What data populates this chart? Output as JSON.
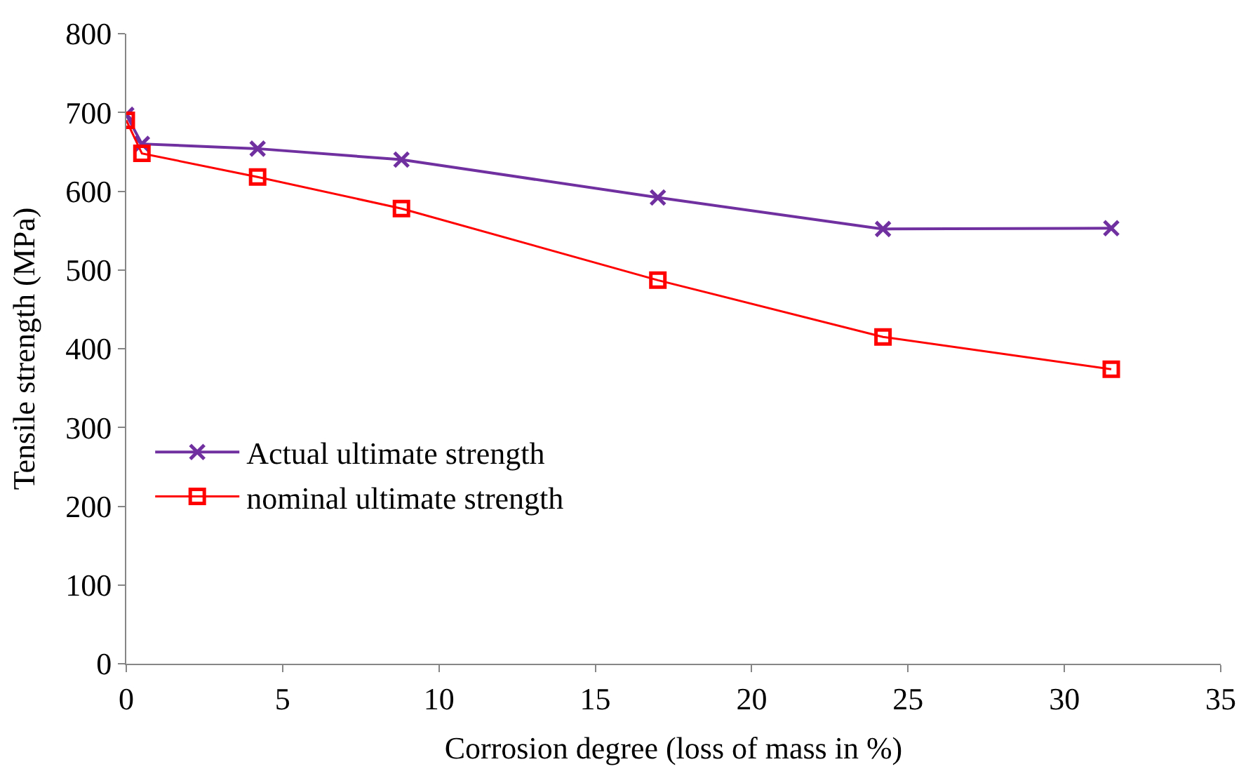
{
  "chart_data": {
    "type": "line",
    "xlabel": "Corrosion degree (loss of mass in %)",
    "ylabel": "Tensile strength (MPa)",
    "x": [
      0,
      0.5,
      4.2,
      8.8,
      17,
      24.2,
      31.5
    ],
    "series": [
      {
        "name": "Actual ultimate strength",
        "color": "#7030a0",
        "marker": "cross",
        "values": [
          697,
          660,
          654,
          640,
          592,
          552,
          553
        ]
      },
      {
        "name": "nominal ultimate strength",
        "color": "#ff0000",
        "marker": "square",
        "values": [
          690,
          648,
          618,
          578,
          487,
          415,
          374
        ]
      }
    ],
    "xlim": [
      0,
      35
    ],
    "xticks": [
      0,
      5,
      10,
      15,
      20,
      25,
      30,
      35
    ],
    "ylim": [
      0,
      800
    ],
    "yticks": [
      0,
      100,
      200,
      300,
      400,
      500,
      600,
      700,
      800
    ],
    "legend": "left"
  }
}
